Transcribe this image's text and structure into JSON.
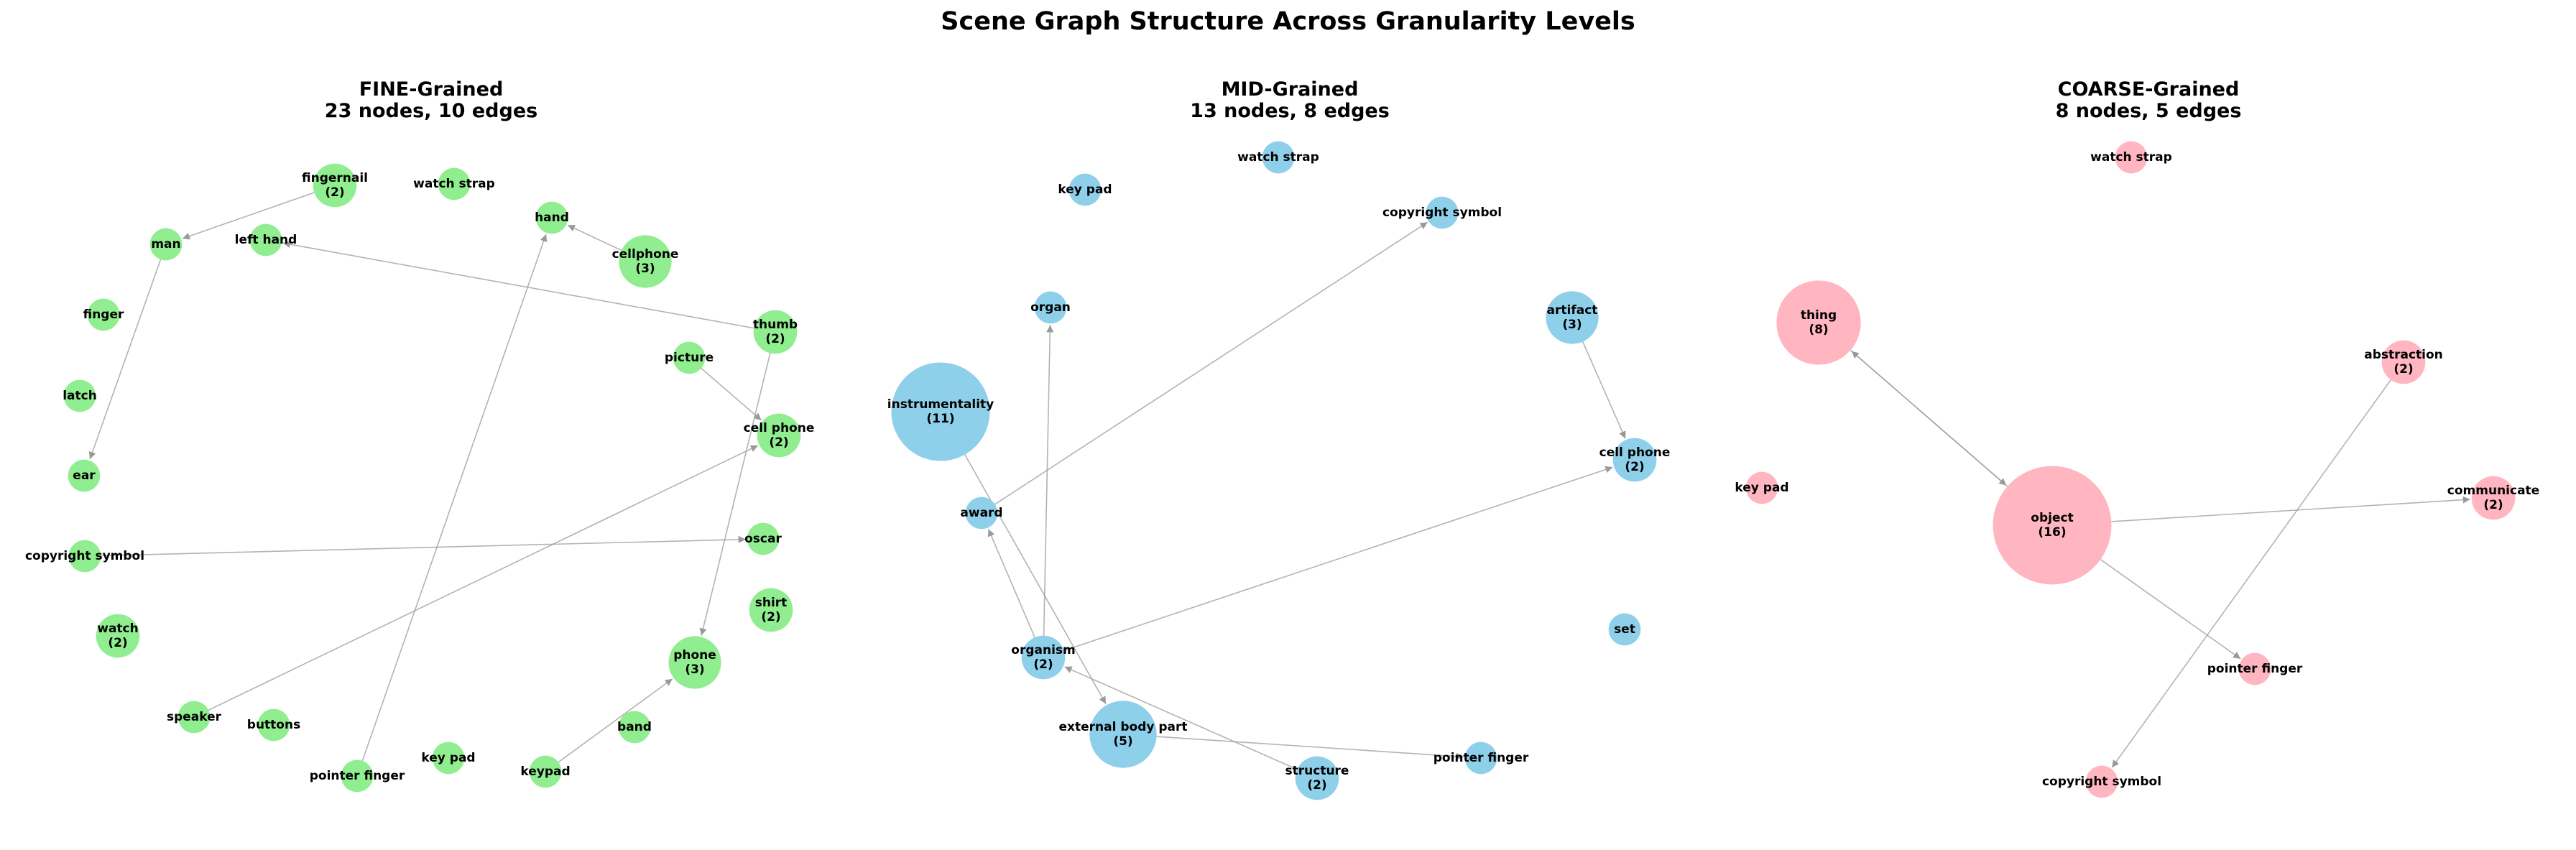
{
  "figure": {
    "title": "Scene Graph Structure Across Granularity Levels"
  },
  "panels": [
    {
      "title": "FINE-Grained",
      "subtitle": "23 nodes, 10 edges",
      "color": "#90EE90",
      "nodes": [
        {
          "id": "fingernail",
          "label": "fingernail",
          "count": 2
        },
        {
          "id": "watch strap",
          "label": "watch strap",
          "count": 1
        },
        {
          "id": "hand",
          "label": "hand",
          "count": 1
        },
        {
          "id": "man",
          "label": "man",
          "count": 1
        },
        {
          "id": "left hand",
          "label": "left hand",
          "count": 1
        },
        {
          "id": "cellphone",
          "label": "cellphone",
          "count": 3
        },
        {
          "id": "finger",
          "label": "finger",
          "count": 1
        },
        {
          "id": "thumb",
          "label": "thumb",
          "count": 2
        },
        {
          "id": "picture",
          "label": "picture",
          "count": 1
        },
        {
          "id": "latch",
          "label": "latch",
          "count": 1
        },
        {
          "id": "cell phone",
          "label": "cell phone",
          "count": 2
        },
        {
          "id": "ear",
          "label": "ear",
          "count": 1
        },
        {
          "id": "oscar",
          "label": "oscar",
          "count": 1
        },
        {
          "id": "copyright symbol",
          "label": "copyright symbol",
          "count": 1
        },
        {
          "id": "shirt",
          "label": "shirt",
          "count": 2
        },
        {
          "id": "watch",
          "label": "watch",
          "count": 2
        },
        {
          "id": "phone",
          "label": "phone",
          "count": 3
        },
        {
          "id": "speaker",
          "label": "speaker",
          "count": 1
        },
        {
          "id": "buttons",
          "label": "buttons",
          "count": 1
        },
        {
          "id": "band",
          "label": "band",
          "count": 1
        },
        {
          "id": "key pad",
          "label": "key pad",
          "count": 1
        },
        {
          "id": "pointer finger",
          "label": "pointer finger",
          "count": 1
        },
        {
          "id": "keypad",
          "label": "keypad",
          "count": 1
        }
      ],
      "edges": [
        {
          "source": "fingernail",
          "target": "man"
        },
        {
          "source": "man",
          "target": "ear"
        },
        {
          "source": "cellphone",
          "target": "hand"
        },
        {
          "source": "thumb",
          "target": "left hand"
        },
        {
          "source": "thumb",
          "target": "phone"
        },
        {
          "source": "picture",
          "target": "cell phone"
        },
        {
          "source": "speaker",
          "target": "cell phone"
        },
        {
          "source": "copyright symbol",
          "target": "oscar"
        },
        {
          "source": "pointer finger",
          "target": "hand"
        },
        {
          "source": "keypad",
          "target": "phone"
        }
      ]
    },
    {
      "title": "MID-Grained",
      "subtitle": "13 nodes, 8 edges",
      "color": "#8ECFEA",
      "nodes": [
        {
          "id": "watch strap",
          "label": "watch strap",
          "count": 1
        },
        {
          "id": "key pad",
          "label": "key pad",
          "count": 1
        },
        {
          "id": "copyright symbol",
          "label": "copyright symbol",
          "count": 1
        },
        {
          "id": "organ",
          "label": "organ",
          "count": 1
        },
        {
          "id": "artifact",
          "label": "artifact",
          "count": 3
        },
        {
          "id": "instrumentality",
          "label": "instrumentality",
          "count": 11
        },
        {
          "id": "cell phone",
          "label": "cell phone",
          "count": 2
        },
        {
          "id": "award",
          "label": "award",
          "count": 1
        },
        {
          "id": "set",
          "label": "set",
          "count": 1
        },
        {
          "id": "organism",
          "label": "organism",
          "count": 2
        },
        {
          "id": "external body part",
          "label": "external body part",
          "count": 5
        },
        {
          "id": "pointer finger",
          "label": "pointer finger",
          "count": 1
        },
        {
          "id": "structure",
          "label": "structure",
          "count": 2
        }
      ],
      "edges": [
        {
          "source": "award",
          "target": "copyright symbol"
        },
        {
          "source": "organism",
          "target": "organ"
        },
        {
          "source": "artifact",
          "target": "cell phone"
        },
        {
          "source": "organism",
          "target": "cell phone"
        },
        {
          "source": "instrumentality",
          "target": "external body part"
        },
        {
          "source": "structure",
          "target": "organism"
        },
        {
          "source": "external body part",
          "target": "pointer finger"
        },
        {
          "source": "organism",
          "target": "award"
        }
      ]
    },
    {
      "title": "COARSE-Grained",
      "subtitle": "8 nodes, 5 edges",
      "color": "#FFB6C1",
      "nodes": [
        {
          "id": "watch strap",
          "label": "watch strap",
          "count": 1
        },
        {
          "id": "thing",
          "label": "thing",
          "count": 8
        },
        {
          "id": "abstraction",
          "label": "abstraction",
          "count": 2
        },
        {
          "id": "key pad",
          "label": "key pad",
          "count": 1
        },
        {
          "id": "object",
          "label": "object",
          "count": 16
        },
        {
          "id": "communicate",
          "label": "communicate",
          "count": 2
        },
        {
          "id": "pointer finger",
          "label": "pointer finger",
          "count": 1
        },
        {
          "id": "copyright symbol",
          "label": "copyright symbol",
          "count": 1
        }
      ],
      "edges": [
        {
          "source": "thing",
          "target": "object"
        },
        {
          "source": "object",
          "target": "thing"
        },
        {
          "source": "object",
          "target": "communicate"
        },
        {
          "source": "object",
          "target": "pointer finger"
        },
        {
          "source": "abstraction",
          "target": "copyright symbol"
        }
      ]
    }
  ]
}
